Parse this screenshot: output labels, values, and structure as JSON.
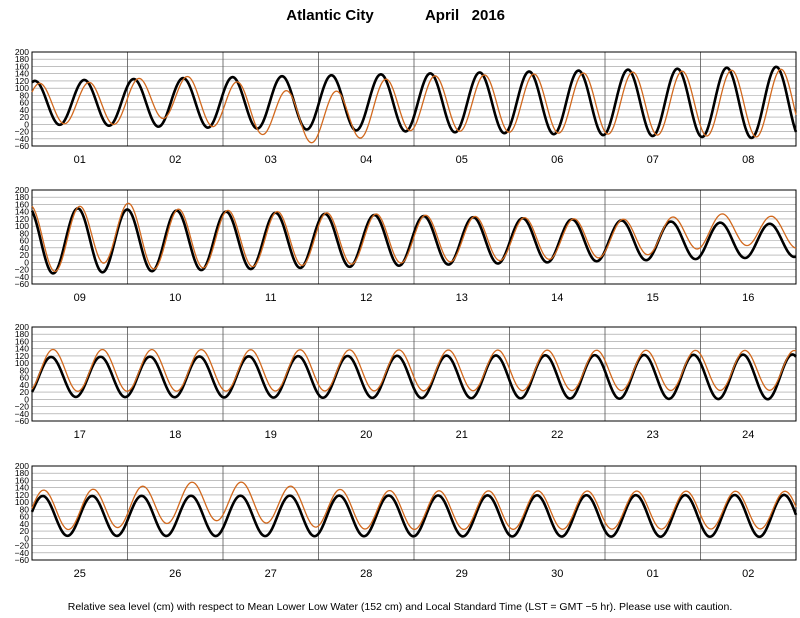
{
  "chart_data": {
    "type": "line",
    "title_location": "Atlantic City",
    "title_period": "April   2016",
    "footnote": "Relative sea level (cm) with respect to Mean Lower Low Water (152 cm) and Local Standard Time (LST = GMT −5 hr). Please use with caution.",
    "ylim": [
      -60,
      200
    ],
    "yticks": [
      "200",
      "180",
      "160",
      "140",
      "120",
      "100",
      "80",
      "60",
      "40",
      "20",
      "0",
      "−20",
      "−40",
      "−60"
    ],
    "grid": true,
    "series_colors": {
      "predicted": "#000000",
      "observed": "#d2691e"
    },
    "panels": [
      {
        "days": [
          "01",
          "02",
          "03",
          "04",
          "05",
          "06",
          "07",
          "08"
        ],
        "predicted": {
          "mean": 60,
          "amp_start": 60,
          "amp_end": 100,
          "phase_day": 0.03
        },
        "observed": {
          "mean": 58,
          "amp_start": 55,
          "amp_end": 95,
          "phase_day": 0.08,
          "anomalies": [
            {
              "day": 1.4,
              "width": 0.3,
              "delta": 20
            },
            {
              "day": 2.8,
              "width": 0.5,
              "delta": -35
            },
            {
              "day": 3.3,
              "width": 0.35,
              "delta": -20
            }
          ]
        }
      },
      {
        "days": [
          "09",
          "10",
          "11",
          "12",
          "13",
          "14",
          "15",
          "16"
        ],
        "predicted": {
          "mean": 60,
          "amp_start": 92,
          "amp_end": 45,
          "phase_day": 0.48
        },
        "observed": {
          "mean": 65,
          "amp_start": 92,
          "amp_end": 40,
          "phase_day": 0.5,
          "anomalies": [
            {
              "day": 0.85,
              "width": 0.2,
              "delta": 25
            },
            {
              "day": 7.4,
              "width": 0.8,
              "delta": 25
            }
          ]
        }
      },
      {
        "days": [
          "17",
          "18",
          "19",
          "20",
          "21",
          "22",
          "23",
          "24"
        ],
        "predicted": {
          "mean": 62,
          "amp_start": 55,
          "amp_end": 62,
          "phase_day": 0.2
        },
        "observed": {
          "mean": 80,
          "amp_start": 58,
          "amp_end": 55,
          "phase_day": 0.22,
          "anomalies": []
        }
      },
      {
        "days": [
          "25",
          "26",
          "27",
          "28",
          "29",
          "30",
          "01",
          "02"
        ],
        "predicted": {
          "mean": 62,
          "amp_start": 55,
          "amp_end": 58,
          "phase_day": 0.63
        },
        "observed": {
          "mean": 78,
          "amp_start": 55,
          "amp_end": 52,
          "phase_day": 0.64,
          "anomalies": [
            {
              "day": 1.95,
              "width": 0.9,
              "delta": 25
            }
          ]
        }
      }
    ]
  }
}
